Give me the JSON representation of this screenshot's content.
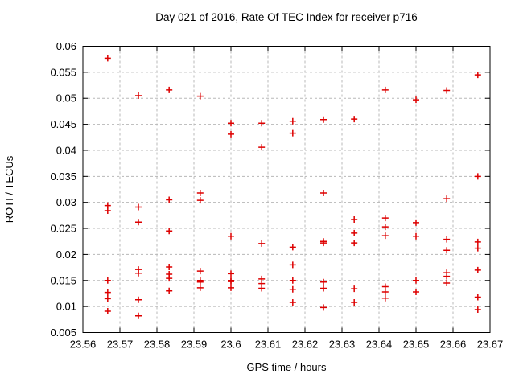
{
  "chart_data": {
    "type": "scatter",
    "title": "Day 021 of 2016, Rate Of TEC Index for receiver p716",
    "xlabel": "GPS time / hours",
    "ylabel": "ROTI / TECUs",
    "xlim": [
      23.56,
      23.67
    ],
    "ylim": [
      0.005,
      0.06
    ],
    "xticks": [
      "23.56",
      "23.57",
      "23.58",
      "23.59",
      "23.6",
      "23.61",
      "23.62",
      "23.63",
      "23.64",
      "23.65",
      "23.66",
      "23.67"
    ],
    "yticks": [
      "0.005",
      "0.01",
      "0.015",
      "0.02",
      "0.025",
      "0.03",
      "0.035",
      "0.04",
      "0.045",
      "0.05",
      "0.055",
      "0.06"
    ],
    "grid": true,
    "legend": "none",
    "marker": "plus",
    "colors": {
      "marker": "#dd0000",
      "grid": "#b8b8b8",
      "axis": "#000000",
      "text": "#000000",
      "background": "#ffffff"
    },
    "points": [
      [
        23.5667,
        0.0577
      ],
      [
        23.5667,
        0.0294
      ],
      [
        23.5667,
        0.0284
      ],
      [
        23.5667,
        0.015
      ],
      [
        23.5667,
        0.0127
      ],
      [
        23.5667,
        0.0115
      ],
      [
        23.5667,
        0.0091
      ],
      [
        23.575,
        0.0505
      ],
      [
        23.575,
        0.0291
      ],
      [
        23.575,
        0.0262
      ],
      [
        23.575,
        0.0171
      ],
      [
        23.575,
        0.0164
      ],
      [
        23.575,
        0.0113
      ],
      [
        23.575,
        0.0082
      ],
      [
        23.5833,
        0.0516
      ],
      [
        23.5833,
        0.0305
      ],
      [
        23.5833,
        0.0245
      ],
      [
        23.5833,
        0.0176
      ],
      [
        23.5833,
        0.0162
      ],
      [
        23.5833,
        0.0154
      ],
      [
        23.5833,
        0.013
      ],
      [
        23.5917,
        0.0504
      ],
      [
        23.5917,
        0.0318
      ],
      [
        23.5917,
        0.0304
      ],
      [
        23.5917,
        0.0168
      ],
      [
        23.5917,
        0.015
      ],
      [
        23.5917,
        0.0147
      ],
      [
        23.5917,
        0.0136
      ],
      [
        23.6,
        0.0452
      ],
      [
        23.6,
        0.0431
      ],
      [
        23.6,
        0.0235
      ],
      [
        23.6,
        0.0163
      ],
      [
        23.6,
        0.015
      ],
      [
        23.6,
        0.0148
      ],
      [
        23.6,
        0.0136
      ],
      [
        23.6083,
        0.0452
      ],
      [
        23.6083,
        0.0406
      ],
      [
        23.6083,
        0.0221
      ],
      [
        23.6083,
        0.0153
      ],
      [
        23.6083,
        0.0144
      ],
      [
        23.6083,
        0.0135
      ],
      [
        23.6167,
        0.0456
      ],
      [
        23.6167,
        0.0433
      ],
      [
        23.6167,
        0.0214
      ],
      [
        23.6167,
        0.018
      ],
      [
        23.6167,
        0.015
      ],
      [
        23.6167,
        0.0133
      ],
      [
        23.6167,
        0.0108
      ],
      [
        23.625,
        0.0459
      ],
      [
        23.625,
        0.0318
      ],
      [
        23.625,
        0.0225
      ],
      [
        23.625,
        0.0222
      ],
      [
        23.625,
        0.0147
      ],
      [
        23.625,
        0.0135
      ],
      [
        23.625,
        0.0098
      ],
      [
        23.6333,
        0.046
      ],
      [
        23.6333,
        0.0267
      ],
      [
        23.6333,
        0.0241
      ],
      [
        23.6333,
        0.0222
      ],
      [
        23.6333,
        0.0134
      ],
      [
        23.6333,
        0.0108
      ],
      [
        23.6417,
        0.0516
      ],
      [
        23.6417,
        0.027
      ],
      [
        23.6417,
        0.0253
      ],
      [
        23.6417,
        0.0236
      ],
      [
        23.6417,
        0.0138
      ],
      [
        23.6417,
        0.0128
      ],
      [
        23.6417,
        0.0116
      ],
      [
        23.65,
        0.0497
      ],
      [
        23.65,
        0.0261
      ],
      [
        23.65,
        0.0235
      ],
      [
        23.65,
        0.015
      ],
      [
        23.65,
        0.0128
      ],
      [
        23.6583,
        0.0515
      ],
      [
        23.6583,
        0.0307
      ],
      [
        23.6583,
        0.0229
      ],
      [
        23.6583,
        0.0208
      ],
      [
        23.6583,
        0.0165
      ],
      [
        23.6583,
        0.0158
      ],
      [
        23.6583,
        0.0145
      ],
      [
        23.6667,
        0.0545
      ],
      [
        23.6667,
        0.035
      ],
      [
        23.6667,
        0.0224
      ],
      [
        23.6667,
        0.0212
      ],
      [
        23.6667,
        0.017
      ],
      [
        23.6667,
        0.0118
      ],
      [
        23.6667,
        0.0094
      ]
    ]
  }
}
